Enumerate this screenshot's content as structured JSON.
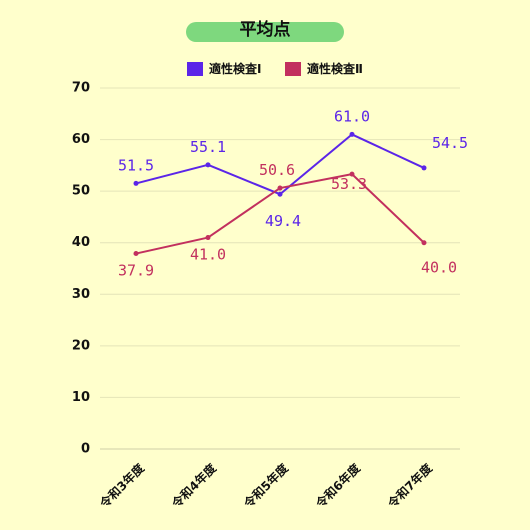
{
  "chart_data": {
    "type": "line",
    "title": "平均点",
    "categories": [
      "令和3年度",
      "令和4年度",
      "令和5年度",
      "令和6年度",
      "令和7年度"
    ],
    "series": [
      {
        "name": "適性検査Ⅰ",
        "color": "#5B25E8",
        "values": [
          51.5,
          55.1,
          49.4,
          61.0,
          54.5
        ],
        "labels": [
          "51.5",
          "55.1",
          "49.4",
          "61.0",
          "54.5"
        ]
      },
      {
        "name": "適性検査Ⅱ",
        "color": "#C2305E",
        "values": [
          37.9,
          41.0,
          50.6,
          53.3,
          40.0
        ],
        "labels": [
          "37.9",
          "41.0",
          "50.6",
          "53.3",
          "40.0"
        ]
      }
    ],
    "ylim": [
      0,
      70
    ],
    "yticks": [
      0,
      10,
      20,
      30,
      40,
      50,
      60,
      70
    ],
    "grid": true,
    "legend_position": "top",
    "title_background": "#7ED87E"
  }
}
